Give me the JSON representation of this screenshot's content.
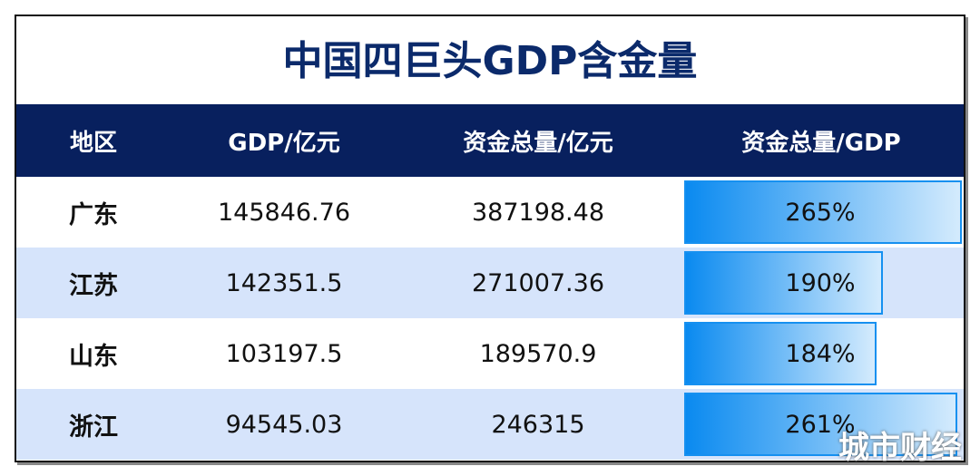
{
  "title": "中国四巨头GDP含金量",
  "headers": [
    "地区",
    "GDP/亿元",
    "资金总量/亿元",
    "资金总量/GDP"
  ],
  "rows": [
    {
      "region": "广东",
      "gdp": "145846.76",
      "funds": "387198.48",
      "ratio": "265%",
      "ratio_value": 265
    },
    {
      "region": "江苏",
      "gdp": "142351.5",
      "funds": "271007.36",
      "ratio": "190%",
      "ratio_value": 190
    },
    {
      "region": "山东",
      "gdp": "103197.5",
      "funds": "189570.9",
      "ratio": "184%",
      "ratio_value": 184
    },
    {
      "region": "浙江",
      "gdp": "94545.03",
      "funds": "246315",
      "ratio": "261%",
      "ratio_value": 261
    }
  ],
  "watermark": "城市财经",
  "colors": {
    "header": "#08205e",
    "title": "#0b2a6b",
    "alt_row": "#d6e4fb",
    "bar": "#0a8af0"
  }
}
